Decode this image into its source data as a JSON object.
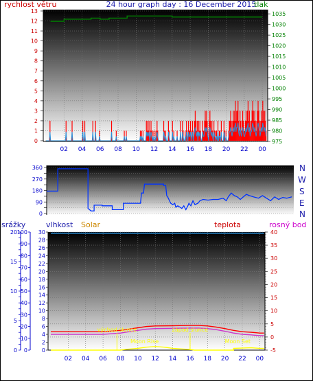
{
  "header": {
    "left_label": "rychlost větru",
    "title": "24 hour graph day : 16 December 2015",
    "right_label": "tlak"
  },
  "middle": {
    "compass": [
      "N",
      "W",
      "S",
      "E",
      "N"
    ]
  },
  "bottom_header": {
    "srazky": "srážky",
    "vlhkost": "vlhkost",
    "solar": "Solar",
    "teplota": "teplota",
    "rosny_bod": "rosný bod"
  },
  "annotations": {
    "sunrise": "východ slunce",
    "sunset": "západ slunce",
    "moonrise": "Moon Rise",
    "moonset": "Moon Set"
  },
  "colors": {
    "wind": "#ff0000",
    "gust_avg": "#2a8fd8",
    "pressure": "#008000",
    "direction": "#0033ff",
    "humidity": "#2a8fd8",
    "temperature": "#ff0000",
    "dewpoint": "#cc33cc",
    "solar": "#ffff00",
    "axis_blue": "#0000cc",
    "axis_red": "#cc0000",
    "axis_green": "#008000",
    "axis_orange": "#cc8800",
    "axis_magenta": "#cc00cc"
  },
  "chart_data": [
    {
      "type": "line",
      "name": "wind_pressure",
      "x_ticks": [
        "02",
        "04",
        "06",
        "08",
        "10",
        "12",
        "14",
        "16",
        "18",
        "20",
        "22",
        "00"
      ],
      "y_left": {
        "label": "rychlost větru",
        "ticks": [
          0,
          1,
          2,
          3,
          4,
          5,
          6,
          7,
          8,
          9,
          10,
          11,
          12,
          13
        ],
        "ylim": [
          0,
          13
        ]
      },
      "y_right": {
        "label": "tlak",
        "ticks": [
          975,
          980,
          985,
          990,
          995,
          1000,
          1005,
          1010,
          1015,
          1020,
          1025,
          1030,
          1035
        ],
        "ylim": [
          975,
          1037
        ]
      },
      "x_hours": [
        0,
        1,
        2,
        3,
        4,
        5,
        6,
        7,
        8,
        9,
        10,
        11,
        12,
        13,
        14,
        15,
        16,
        17,
        18,
        19,
        20,
        21,
        22,
        23,
        24
      ],
      "wind_max": [
        0,
        0,
        0,
        0,
        0,
        0,
        2,
        0,
        0,
        0,
        0,
        0,
        0,
        0,
        0,
        0,
        0,
        0,
        0,
        0,
        0,
        0,
        0,
        0,
        0,
        0,
        0,
        0,
        0,
        0,
        2,
        0,
        0,
        0,
        0,
        0,
        0,
        0,
        0,
        2,
        0,
        0,
        0,
        0,
        0,
        0,
        0,
        0,
        0,
        0,
        0,
        0,
        0,
        0,
        0,
        2,
        0,
        0,
        2,
        0,
        0,
        0,
        0,
        0,
        0,
        0,
        0,
        0,
        0,
        0,
        2,
        0,
        0,
        0,
        2,
        0,
        0,
        0,
        0,
        0,
        1,
        0,
        0,
        0,
        0,
        0,
        0,
        0,
        0,
        0,
        0,
        0,
        0,
        0,
        0,
        0,
        0,
        0,
        2,
        0,
        0,
        0,
        0,
        0,
        0,
        1,
        0,
        0,
        0,
        0,
        0,
        0,
        0,
        0,
        0,
        0,
        0,
        1,
        0,
        0,
        1,
        0,
        0,
        0,
        0,
        0,
        0,
        0,
        0,
        0,
        0,
        0,
        0,
        0,
        0,
        0,
        0,
        0,
        0,
        0,
        0,
        1,
        0,
        1,
        0,
        1,
        0,
        0,
        0,
        0,
        2,
        1,
        2,
        1,
        2,
        0,
        1,
        2,
        1,
        0,
        1,
        0,
        0,
        1,
        0,
        1,
        2,
        1,
        0,
        0,
        0,
        0,
        0,
        0,
        0,
        0,
        2,
        1,
        0,
        1,
        0,
        0,
        0,
        2,
        1,
        0,
        0,
        0,
        0,
        2,
        0,
        1,
        0,
        0,
        0,
        0,
        1,
        0,
        0,
        0,
        0,
        2,
        0,
        0,
        2,
        1,
        0,
        0,
        1,
        0,
        2,
        1,
        0,
        2,
        1,
        1,
        2,
        0,
        1,
        2,
        0,
        1,
        2,
        3,
        2,
        1,
        2,
        0,
        2,
        1,
        2,
        1,
        0,
        0,
        2,
        1,
        1,
        2,
        3,
        2,
        3,
        2,
        1,
        0,
        2,
        3,
        2,
        1,
        2,
        1,
        0,
        2,
        1,
        1,
        0,
        1,
        0,
        2,
        0,
        1,
        1,
        0,
        2,
        0,
        0,
        0,
        2,
        1,
        0,
        1,
        0,
        0,
        0,
        1,
        2,
        2,
        3,
        2,
        1,
        2,
        3,
        2,
        3,
        4,
        2,
        3,
        3,
        4,
        2,
        1,
        3,
        2,
        1,
        2,
        3,
        2,
        1,
        1,
        2,
        3,
        2,
        3,
        4,
        2,
        3,
        1,
        2,
        2,
        3,
        4,
        3,
        2,
        3,
        2,
        1,
        2,
        3,
        4,
        3,
        2,
        1,
        2,
        3,
        2,
        4,
        3,
        2,
        3,
        2,
        1
      ],
      "wind_avg_note": "",
      "pressure_segments": [
        {
          "from": 0.5,
          "to": 2.0,
          "value": 1031.5
        },
        {
          "from": 2.0,
          "to": 5.0,
          "value": 1032.5
        },
        {
          "from": 5.0,
          "to": 6.0,
          "value": 1033.0
        },
        {
          "from": 6.0,
          "to": 7.0,
          "value": 1032.5
        },
        {
          "from": 7.0,
          "to": 9.0,
          "value": 1033.0
        },
        {
          "from": 9.0,
          "to": 14.0,
          "value": 1034.0
        },
        {
          "from": 14.0,
          "to": 15.0,
          "value": 1033.5
        },
        {
          "from": 15.0,
          "to": 19.0,
          "value": 1033.5
        },
        {
          "from": 19.0,
          "to": 24.0,
          "value": 1033.5
        }
      ]
    },
    {
      "type": "line",
      "name": "wind_direction",
      "y_ticks": [
        0,
        45,
        90,
        135,
        180,
        225,
        270,
        315,
        360
      ],
      "y_tick_labels": [
        "0",
        "",
        "90",
        "",
        "180",
        "",
        "270",
        "",
        "360"
      ],
      "ylim": [
        0,
        360
      ],
      "points": [
        [
          0.0,
          175
        ],
        [
          1.1,
          175
        ],
        [
          1.1,
          350
        ],
        [
          4.1,
          350
        ],
        [
          4.1,
          40
        ],
        [
          4.4,
          20
        ],
        [
          4.7,
          20
        ],
        [
          4.7,
          65
        ],
        [
          5.5,
          65
        ],
        [
          5.5,
          60
        ],
        [
          6.5,
          60
        ],
        [
          6.5,
          30
        ],
        [
          7.6,
          30
        ],
        [
          7.6,
          80
        ],
        [
          9.3,
          80
        ],
        [
          9.3,
          80
        ],
        [
          9.4,
          160
        ],
        [
          9.6,
          160
        ],
        [
          9.7,
          230
        ],
        [
          11.6,
          230
        ],
        [
          11.6,
          220
        ],
        [
          11.8,
          220
        ],
        [
          11.9,
          140
        ],
        [
          12.0,
          130
        ],
        [
          12.3,
          80
        ],
        [
          12.5,
          70
        ],
        [
          12.7,
          80
        ],
        [
          12.8,
          50
        ],
        [
          13.0,
          60
        ],
        [
          13.2,
          50
        ],
        [
          13.4,
          40
        ],
        [
          13.6,
          60
        ],
        [
          13.8,
          30
        ],
        [
          14.0,
          60
        ],
        [
          14.1,
          80
        ],
        [
          14.3,
          60
        ],
        [
          14.5,
          100
        ],
        [
          14.7,
          70
        ],
        [
          15.0,
          80
        ],
        [
          15.2,
          100
        ],
        [
          15.5,
          110
        ],
        [
          16.0,
          105
        ],
        [
          16.5,
          110
        ],
        [
          17.0,
          110
        ],
        [
          17.5,
          120
        ],
        [
          17.8,
          100
        ],
        [
          18.0,
          130
        ],
        [
          18.3,
          160
        ],
        [
          18.6,
          140
        ],
        [
          18.9,
          130
        ],
        [
          19.2,
          110
        ],
        [
          19.5,
          130
        ],
        [
          19.8,
          150
        ],
        [
          20.1,
          140
        ],
        [
          20.5,
          130
        ],
        [
          21.0,
          120
        ],
        [
          21.4,
          140
        ],
        [
          21.8,
          120
        ],
        [
          22.2,
          100
        ],
        [
          22.6,
          130
        ],
        [
          23.0,
          110
        ],
        [
          23.4,
          125
        ],
        [
          23.8,
          120
        ],
        [
          24.3,
          130
        ]
      ]
    },
    {
      "type": "line",
      "name": "humidity_temperature",
      "x_ticks": [
        "02",
        "04",
        "06",
        "08",
        "10",
        "12",
        "14",
        "16",
        "18",
        "20",
        "22",
        "00"
      ],
      "y_srazky": {
        "label": "srážky",
        "ticks": [
          0,
          1,
          2,
          3,
          4,
          5,
          6,
          7,
          8,
          9,
          10,
          11,
          12,
          13,
          14,
          15,
          16,
          17,
          18,
          19,
          20
        ],
        "tick_labels": [
          "0",
          "",
          "",
          "",
          "",
          "5",
          "",
          "",
          "",
          "",
          "10",
          "",
          "",
          "",
          "",
          "15",
          "",
          "",
          "",
          "",
          "20"
        ],
        "ylim": [
          0,
          20
        ]
      },
      "y_vlhkost": {
        "label": "vlhkost",
        "ticks": [
          0,
          10,
          20,
          30,
          40,
          50,
          60,
          70,
          80,
          90,
          100
        ],
        "ylim": [
          0,
          100
        ]
      },
      "y_solar_ticks": [
        0,
        2,
        4,
        6,
        8,
        10,
        12,
        14,
        16,
        18,
        20,
        22,
        24,
        26,
        28,
        30
      ],
      "y_teplota": {
        "label": "teplota",
        "ticks": [
          -5,
          0,
          5,
          10,
          15,
          20,
          25,
          30,
          35,
          40
        ],
        "ylim": [
          -5,
          40
        ]
      },
      "humidity": [
        [
          0,
          99
        ],
        [
          24.5,
          99
        ]
      ],
      "temperature": [
        [
          0,
          2.0
        ],
        [
          6,
          2.0
        ],
        [
          8,
          2.5
        ],
        [
          9,
          3.0
        ],
        [
          10,
          3.5
        ],
        [
          11,
          4.0
        ],
        [
          12,
          4.2
        ],
        [
          14,
          4.3
        ],
        [
          16,
          4.4
        ],
        [
          17,
          4.4
        ],
        [
          18,
          4.2
        ],
        [
          19,
          3.8
        ],
        [
          20,
          3.2
        ],
        [
          21,
          2.5
        ],
        [
          22,
          2.0
        ],
        [
          23,
          1.8
        ],
        [
          24,
          1.5
        ],
        [
          24.5,
          1.5
        ]
      ],
      "dewpoint": [
        [
          0,
          1.0
        ],
        [
          6,
          1.0
        ],
        [
          8,
          1.5
        ],
        [
          9,
          2.0
        ],
        [
          10,
          2.5
        ],
        [
          11,
          3.0
        ],
        [
          12,
          3.2
        ],
        [
          14,
          3.3
        ],
        [
          16,
          3.4
        ],
        [
          17,
          3.4
        ],
        [
          18,
          3.2
        ],
        [
          19,
          2.8
        ],
        [
          20,
          2.2
        ],
        [
          21,
          1.5
        ],
        [
          22,
          1.0
        ],
        [
          23,
          0.8
        ],
        [
          24,
          0.5
        ],
        [
          24.5,
          0.5
        ]
      ],
      "solar": [
        [
          0,
          0
        ],
        [
          8,
          0
        ],
        [
          8.5,
          0.1
        ],
        [
          10,
          0.3
        ],
        [
          11,
          0.5
        ],
        [
          12,
          0.6
        ],
        [
          13,
          0.5
        ],
        [
          14,
          0.3
        ],
        [
          15,
          0.2
        ],
        [
          16,
          0.1
        ],
        [
          16.5,
          0
        ],
        [
          21,
          0
        ],
        [
          21,
          0.3
        ],
        [
          23,
          0.4
        ],
        [
          24,
          0.3
        ],
        [
          24.5,
          0.3
        ]
      ],
      "sunrise_hour": 7.6,
      "sunset_hour": 16.0,
      "moonrise_hour": 10.3,
      "moonset_hour": 21.0
    }
  ]
}
